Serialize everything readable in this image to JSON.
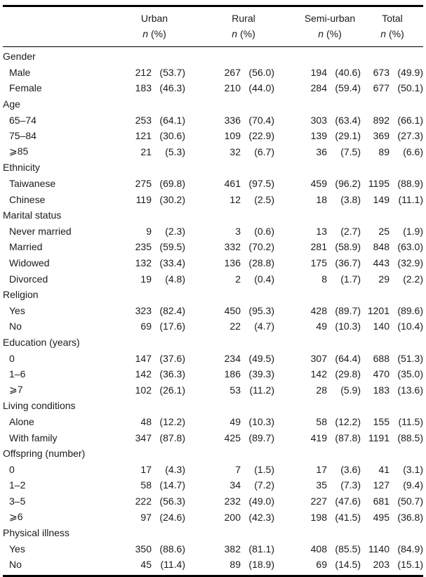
{
  "header": {
    "columns": [
      "Urban",
      "Rural",
      "Semi-urban",
      "Total"
    ],
    "sub_n": "n",
    "sub_pct": "(%)"
  },
  "table": {
    "groups": [
      {
        "label": "Gender",
        "rows": [
          {
            "label": "Male",
            "cells": [
              {
                "n": "212",
                "p": "(53.7)"
              },
              {
                "n": "267",
                "p": "(56.0)"
              },
              {
                "n": "194",
                "p": "(40.6)"
              },
              {
                "n": "673",
                "p": "(49.9)"
              }
            ]
          },
          {
            "label": "Female",
            "cells": [
              {
                "n": "183",
                "p": "(46.3)"
              },
              {
                "n": "210",
                "p": "(44.0)"
              },
              {
                "n": "284",
                "p": "(59.4)"
              },
              {
                "n": "677",
                "p": "(50.1)"
              }
            ]
          }
        ]
      },
      {
        "label": "Age",
        "rows": [
          {
            "label": "65–74",
            "cells": [
              {
                "n": "253",
                "p": "(64.1)"
              },
              {
                "n": "336",
                "p": "(70.4)"
              },
              {
                "n": "303",
                "p": "(63.4)"
              },
              {
                "n": "892",
                "p": "(66.1)"
              }
            ]
          },
          {
            "label": "75–84",
            "cells": [
              {
                "n": "121",
                "p": "(30.6)"
              },
              {
                "n": "109",
                "p": "(22.9)"
              },
              {
                "n": "139",
                "p": "(29.1)"
              },
              {
                "n": "369",
                "p": "(27.3)"
              }
            ]
          },
          {
            "label": "⩾85",
            "cells": [
              {
                "n": "21",
                "p": "(5.3)"
              },
              {
                "n": "32",
                "p": "(6.7)"
              },
              {
                "n": "36",
                "p": "(7.5)"
              },
              {
                "n": "89",
                "p": "(6.6)"
              }
            ]
          }
        ]
      },
      {
        "label": "Ethnicity",
        "rows": [
          {
            "label": "Taiwanese",
            "cells": [
              {
                "n": "275",
                "p": "(69.8)"
              },
              {
                "n": "461",
                "p": "(97.5)"
              },
              {
                "n": "459",
                "p": "(96.2)"
              },
              {
                "n": "1195",
                "p": "(88.9)"
              }
            ]
          },
          {
            "label": "Chinese",
            "cells": [
              {
                "n": "119",
                "p": "(30.2)"
              },
              {
                "n": "12",
                "p": "(2.5)"
              },
              {
                "n": "18",
                "p": "(3.8)"
              },
              {
                "n": "149",
                "p": "(11.1)"
              }
            ]
          }
        ]
      },
      {
        "label": "Marital status",
        "rows": [
          {
            "label": "Never married",
            "cells": [
              {
                "n": "9",
                "p": "(2.3)"
              },
              {
                "n": "3",
                "p": "(0.6)"
              },
              {
                "n": "13",
                "p": "(2.7)"
              },
              {
                "n": "25",
                "p": "(1.9)"
              }
            ]
          },
          {
            "label": "Married",
            "cells": [
              {
                "n": "235",
                "p": "(59.5)"
              },
              {
                "n": "332",
                "p": "(70.2)"
              },
              {
                "n": "281",
                "p": "(58.9)"
              },
              {
                "n": "848",
                "p": "(63.0)"
              }
            ]
          },
          {
            "label": "Widowed",
            "cells": [
              {
                "n": "132",
                "p": "(33.4)"
              },
              {
                "n": "136",
                "p": "(28.8)"
              },
              {
                "n": "175",
                "p": "(36.7)"
              },
              {
                "n": "443",
                "p": "(32.9)"
              }
            ]
          },
          {
            "label": "Divorced",
            "cells": [
              {
                "n": "19",
                "p": "(4.8)"
              },
              {
                "n": "2",
                "p": "(0.4)"
              },
              {
                "n": "8",
                "p": "(1.7)"
              },
              {
                "n": "29",
                "p": "(2.2)"
              }
            ]
          }
        ]
      },
      {
        "label": "Religion",
        "rows": [
          {
            "label": "Yes",
            "cells": [
              {
                "n": "323",
                "p": "(82.4)"
              },
              {
                "n": "450",
                "p": "(95.3)"
              },
              {
                "n": "428",
                "p": "(89.7)"
              },
              {
                "n": "1201",
                "p": "(89.6)"
              }
            ]
          },
          {
            "label": "No",
            "cells": [
              {
                "n": "69",
                "p": "(17.6)"
              },
              {
                "n": "22",
                "p": "(4.7)"
              },
              {
                "n": "49",
                "p": "(10.3)"
              },
              {
                "n": "140",
                "p": "(10.4)"
              }
            ]
          }
        ]
      },
      {
        "label": "Education (years)",
        "rows": [
          {
            "label": "0",
            "cells": [
              {
                "n": "147",
                "p": "(37.6)"
              },
              {
                "n": "234",
                "p": "(49.5)"
              },
              {
                "n": "307",
                "p": "(64.4)"
              },
              {
                "n": "688",
                "p": "(51.3)"
              }
            ]
          },
          {
            "label": "1–6",
            "cells": [
              {
                "n": "142",
                "p": "(36.3)"
              },
              {
                "n": "186",
                "p": "(39.3)"
              },
              {
                "n": "142",
                "p": "(29.8)"
              },
              {
                "n": "470",
                "p": "(35.0)"
              }
            ]
          },
          {
            "label": "⩾7",
            "cells": [
              {
                "n": "102",
                "p": "(26.1)"
              },
              {
                "n": "53",
                "p": "(11.2)"
              },
              {
                "n": "28",
                "p": "(5.9)"
              },
              {
                "n": "183",
                "p": "(13.6)"
              }
            ]
          }
        ]
      },
      {
        "label": "Living conditions",
        "rows": [
          {
            "label": "Alone",
            "cells": [
              {
                "n": "48",
                "p": "(12.2)"
              },
              {
                "n": "49",
                "p": "(10.3)"
              },
              {
                "n": "58",
                "p": "(12.2)"
              },
              {
                "n": "155",
                "p": "(11.5)"
              }
            ]
          },
          {
            "label": "With family",
            "cells": [
              {
                "n": "347",
                "p": "(87.8)"
              },
              {
                "n": "425",
                "p": "(89.7)"
              },
              {
                "n": "419",
                "p": "(87.8)"
              },
              {
                "n": "1191",
                "p": "(88.5)"
              }
            ]
          }
        ]
      },
      {
        "label": "Offspring (number)",
        "rows": [
          {
            "label": "0",
            "cells": [
              {
                "n": "17",
                "p": "(4.3)"
              },
              {
                "n": "7",
                "p": "(1.5)"
              },
              {
                "n": "17",
                "p": "(3.6)"
              },
              {
                "n": "41",
                "p": "(3.1)"
              }
            ]
          },
          {
            "label": "1–2",
            "cells": [
              {
                "n": "58",
                "p": "(14.7)"
              },
              {
                "n": "34",
                "p": "(7.2)"
              },
              {
                "n": "35",
                "p": "(7.3)"
              },
              {
                "n": "127",
                "p": "(9.4)"
              }
            ]
          },
          {
            "label": "3–5",
            "cells": [
              {
                "n": "222",
                "p": "(56.3)"
              },
              {
                "n": "232",
                "p": "(49.0)"
              },
              {
                "n": "227",
                "p": "(47.6)"
              },
              {
                "n": "681",
                "p": "(50.7)"
              }
            ]
          },
          {
            "label": "⩾6",
            "cells": [
              {
                "n": "97",
                "p": "(24.6)"
              },
              {
                "n": "200",
                "p": "(42.3)"
              },
              {
                "n": "198",
                "p": "(41.5)"
              },
              {
                "n": "495",
                "p": "(36.8)"
              }
            ]
          }
        ]
      },
      {
        "label": "Physical illness",
        "rows": [
          {
            "label": "Yes",
            "cells": [
              {
                "n": "350",
                "p": "(88.6)"
              },
              {
                "n": "382",
                "p": "(81.1)"
              },
              {
                "n": "408",
                "p": "(85.5)"
              },
              {
                "n": "1140",
                "p": "(84.9)"
              }
            ]
          },
          {
            "label": "No",
            "cells": [
              {
                "n": "45",
                "p": "(11.4)"
              },
              {
                "n": "89",
                "p": "(18.9)"
              },
              {
                "n": "69",
                "p": "(14.5)"
              },
              {
                "n": "203",
                "p": "(15.1)"
              }
            ]
          }
        ]
      }
    ]
  }
}
